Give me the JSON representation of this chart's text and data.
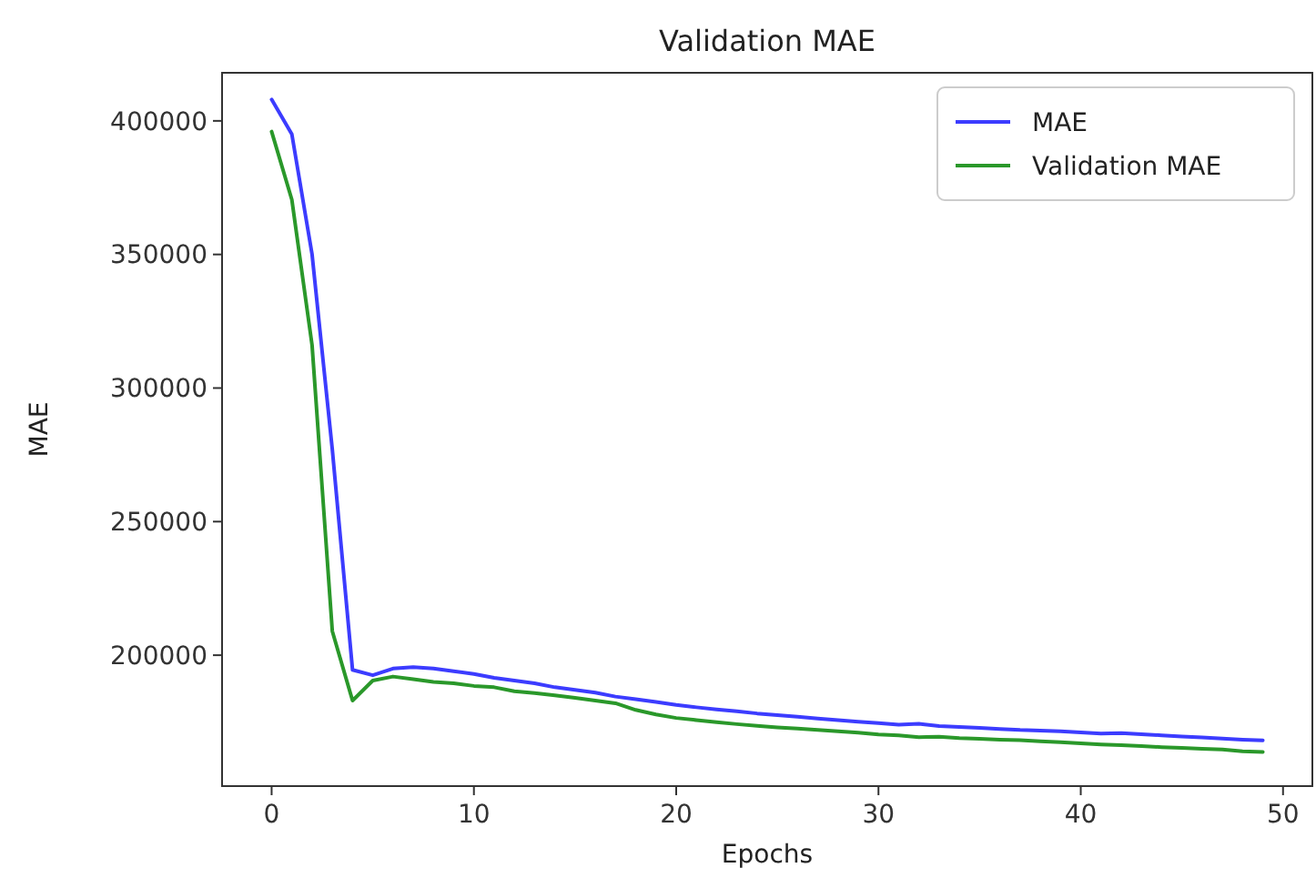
{
  "chart_data": {
    "type": "line",
    "title": "Validation MAE",
    "xlabel": "Epochs",
    "ylabel": "MAE",
    "x": [
      0,
      1,
      2,
      3,
      4,
      5,
      6,
      7,
      8,
      9,
      10,
      11,
      12,
      13,
      14,
      15,
      16,
      17,
      18,
      19,
      20,
      21,
      22,
      23,
      24,
      25,
      26,
      27,
      28,
      29,
      30,
      31,
      32,
      33,
      34,
      35,
      36,
      37,
      38,
      39,
      40,
      41,
      42,
      43,
      44,
      45,
      46,
      47,
      48,
      49
    ],
    "series": [
      {
        "name": "MAE",
        "color": "#3c3cff",
        "values": [
          408000,
          395000,
          350000,
          277000,
          194500,
          192500,
          195000,
          195500,
          195000,
          194000,
          193000,
          191500,
          190500,
          189500,
          188000,
          187000,
          186000,
          184500,
          183500,
          182500,
          181400,
          180500,
          179700,
          179000,
          178200,
          177600,
          177000,
          176300,
          175700,
          175100,
          174600,
          174000,
          174300,
          173500,
          173100,
          172800,
          172400,
          172000,
          171800,
          171500,
          171100,
          170700,
          170800,
          170400,
          170000,
          169600,
          169200,
          168800,
          168400,
          168100
        ]
      },
      {
        "name": "Validation MAE",
        "color": "#2a982a",
        "values": [
          396000,
          370500,
          316000,
          209000,
          183000,
          190500,
          192000,
          191000,
          190000,
          189500,
          188500,
          188000,
          186500,
          185800,
          185000,
          184000,
          183000,
          182000,
          179500,
          177800,
          176500,
          175700,
          174900,
          174200,
          173600,
          173000,
          172500,
          172000,
          171500,
          171000,
          170300,
          170000,
          169300,
          169500,
          169000,
          168700,
          168400,
          168200,
          167800,
          167400,
          167000,
          166600,
          166300,
          166000,
          165600,
          165300,
          165000,
          164700,
          164000,
          163800
        ]
      }
    ],
    "xlim": [
      -2.45,
      51.45
    ],
    "ylim": [
      151000,
      418000
    ],
    "xticks": [
      0,
      10,
      20,
      30,
      40,
      50
    ],
    "yticks": [
      200000,
      250000,
      300000,
      350000,
      400000
    ],
    "legend": "top right",
    "grid": false,
    "marker": "none",
    "line_style": "solid"
  }
}
